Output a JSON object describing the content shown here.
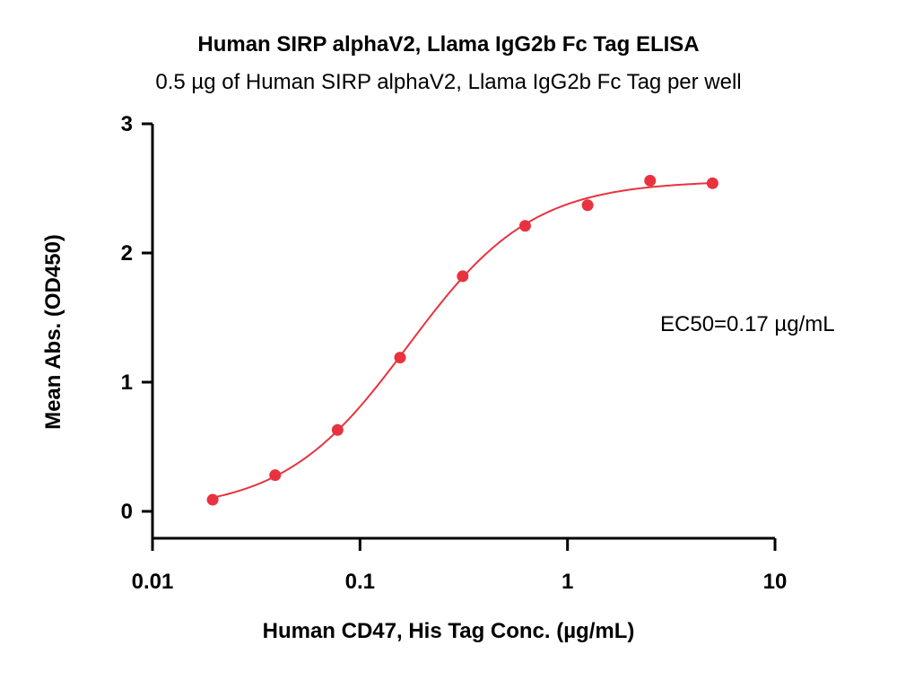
{
  "chart_data": {
    "type": "scatter",
    "title": "Human SIRP alphaV2, Llama IgG2b Fc Tag ELISA",
    "subtitle": "0.5 µg of Human SIRP alphaV2, Llama IgG2b Fc Tag per well",
    "xlabel": "Human CD47, His Tag Conc. (µg/mL)",
    "ylabel": "Mean Abs. (OD450)",
    "x_scale": "log",
    "xlim": [
      0.01,
      10
    ],
    "ylim": [
      -0.2,
      3
    ],
    "x_ticks": [
      0.01,
      0.1,
      1,
      10
    ],
    "x_tick_labels": [
      "0.01",
      "0.1",
      "1",
      "10"
    ],
    "y_ticks": [
      0,
      1,
      2,
      3
    ],
    "y_tick_labels": [
      "0",
      "1",
      "2",
      "3"
    ],
    "annotation": "EC50=0.17 µg/mL",
    "series": [
      {
        "color": "#e8333f",
        "x": [
          0.0195,
          0.039,
          0.078,
          0.156,
          0.3125,
          0.625,
          1.25,
          2.5,
          5
        ],
        "y": [
          0.09,
          0.28,
          0.63,
          1.19,
          1.82,
          2.21,
          2.37,
          2.56,
          2.54
        ],
        "fit": "4PL"
      }
    ]
  }
}
